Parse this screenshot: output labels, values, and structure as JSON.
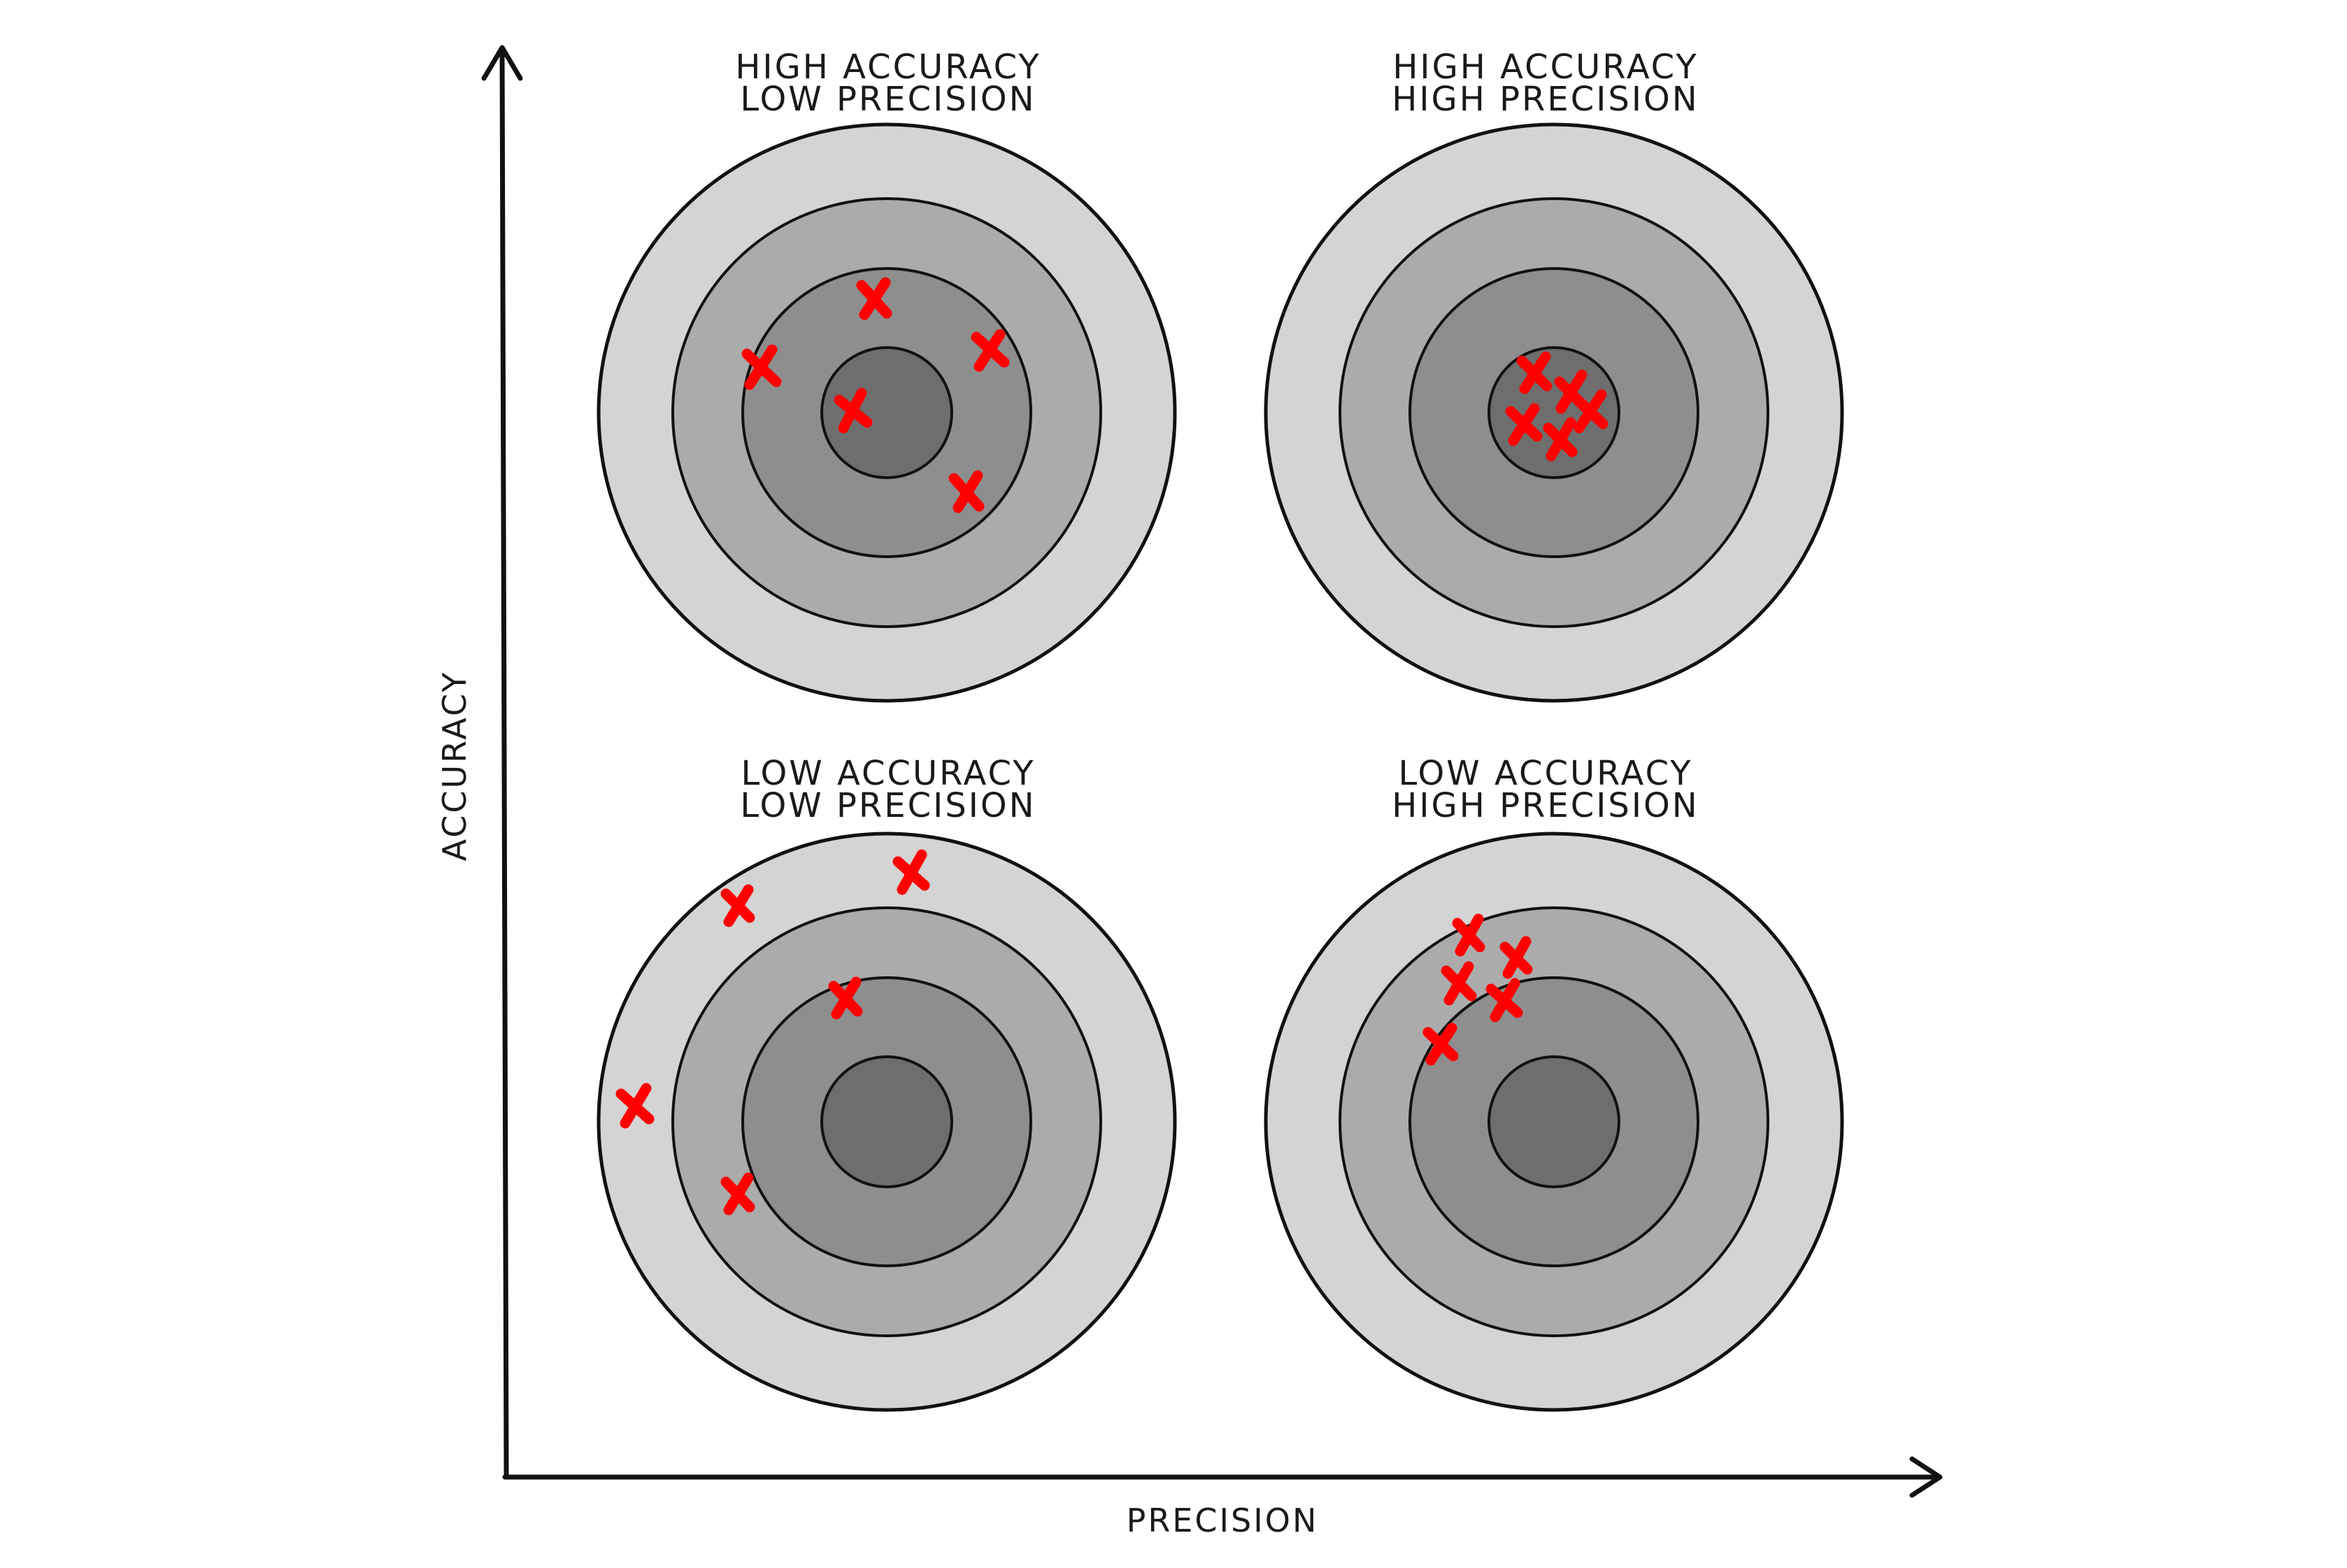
{
  "axes": {
    "y_label": "ACCURACY",
    "x_label": "PRECISION"
  },
  "colors": {
    "ring_outer": "#d4d4d4",
    "ring_2": "#ababab",
    "ring_3": "#8e8e8e",
    "bullseye": "#6e6e6e",
    "outline": "#111111",
    "mark": "#ff0000"
  },
  "targets": [
    {
      "id": "top-left",
      "title_line1": "HIGH ACCURACY",
      "title_line2": "LOW PRECISION"
    },
    {
      "id": "top-right",
      "title_line1": "HIGH ACCURACY",
      "title_line2": "HIGH PRECISION"
    },
    {
      "id": "bottom-left",
      "title_line1": "LOW ACCURACY",
      "title_line2": "LOW PRECISION"
    },
    {
      "id": "bottom-right",
      "title_line1": "LOW ACCURACY",
      "title_line2": "HIGH PRECISION"
    }
  ]
}
